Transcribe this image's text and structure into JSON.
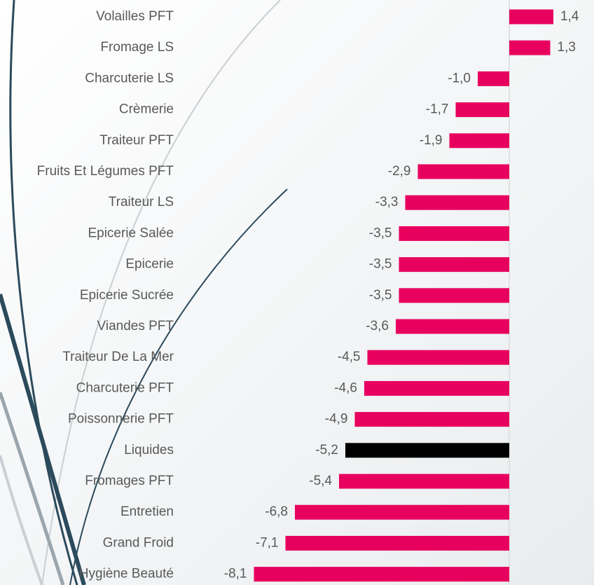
{
  "chart_data": {
    "type": "hbar",
    "categories": [
      "Volailles PFT",
      "Fromage LS",
      "Charcuterie LS",
      "Crèmerie",
      "Traiteur PFT",
      "Fruits Et Légumes PFT",
      "Traiteur LS",
      "Epicerie Salée",
      "Epicerie",
      "Epicerie Sucrée",
      "Viandes PFT",
      "Traiteur De La Mer",
      "Charcuterie PFT",
      "Poissonnerie PFT",
      "Liquides",
      "Fromages PFT",
      "Entretien",
      "Grand Froid",
      "Hygiène Beauté"
    ],
    "values": [
      1.4,
      1.3,
      -1.0,
      -1.7,
      -1.9,
      -2.9,
      -3.3,
      -3.5,
      -3.5,
      -3.5,
      -3.6,
      -4.5,
      -4.6,
      -4.9,
      -5.2,
      -5.4,
      -6.8,
      -7.1,
      -8.1
    ],
    "value_labels": [
      "1,4",
      "1,3",
      "-1,0",
      "-1,7",
      "-1,9",
      "-2,9",
      "-3,3",
      "-3,5",
      "-3,5",
      "-3,5",
      "-3,6",
      "-4,5",
      "-4,6",
      "-4,9",
      "-5,2",
      "-5,4",
      "-6,8",
      "-7,1",
      "-8,1"
    ],
    "colors": [
      "#e8005f",
      "#e8005f",
      "#e8005f",
      "#e8005f",
      "#e8005f",
      "#e8005f",
      "#e8005f",
      "#e8005f",
      "#e8005f",
      "#e8005f",
      "#e8005f",
      "#e8005f",
      "#e8005f",
      "#e8005f",
      "#000000",
      "#e8005f",
      "#e8005f",
      "#e8005f",
      "#e8005f"
    ],
    "xlim": [
      -9,
      2
    ]
  }
}
